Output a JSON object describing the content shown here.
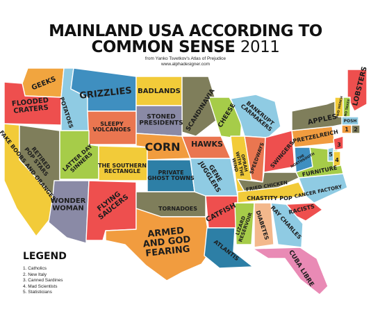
{
  "title_line1": "MAINLAND USA ACCORDING TO",
  "title_line2": "COMMON SENSE",
  "title_year": "2011",
  "credit_line1": "from Yanko Tsvetkov's Atlas of Prejudice",
  "credit_line2": "www.alphadesigner.com",
  "legend": {
    "title": "LEGEND",
    "items": [
      "1. Catholics",
      "2. New Italy",
      "3. Canned Sardines",
      "4. Mad Scientists",
      "5. Statisticians"
    ]
  },
  "regions": [
    {
      "id": "wa",
      "lines": [
        "GEEKS"
      ],
      "color": "#f1a53f"
    },
    {
      "id": "id",
      "lines": [
        "POTATOES"
      ],
      "color": "#8fcbe3"
    },
    {
      "id": "mt",
      "lines": [
        "GRIZZLIES"
      ],
      "color": "#3f8fc0"
    },
    {
      "id": "nd",
      "lines": [
        "BADLANDS"
      ],
      "color": "#f2cb39"
    },
    {
      "id": "mn",
      "lines": [
        "SCANDINAVIA"
      ],
      "color": "#7f7e5b"
    },
    {
      "id": "sd",
      "lines": [
        "STONED",
        "PRESIDENTS"
      ],
      "color": "#8a8aa6"
    },
    {
      "id": "wy",
      "lines": [
        "SLEEPY",
        "VOLCANOES"
      ],
      "color": "#ea7650"
    },
    {
      "id": "or",
      "lines": [
        "FLOODED",
        "CRATERS"
      ],
      "color": "#ee4f4e"
    },
    {
      "id": "ca",
      "lines": [
        "FAKE BOOBS AND ORANGES"
      ],
      "color": "#f2cb39"
    },
    {
      "id": "nv",
      "lines": [
        "RETIRED",
        "POP STARS"
      ],
      "color": "#7f7e5b"
    },
    {
      "id": "ut",
      "lines": [
        "LATTER DAY",
        "SINNERS"
      ],
      "color": "#a6cc49"
    },
    {
      "id": "co",
      "lines": [
        "THE SOUTHERN",
        "RECTANGLE"
      ],
      "color": "#f2cb39"
    },
    {
      "id": "ne",
      "lines": [
        "CORN"
      ],
      "color": "#f19c3f"
    },
    {
      "id": "ks",
      "lines": [
        "PRIVATE",
        "GHOST TOWNS"
      ],
      "color": "#2d7fa6"
    },
    {
      "id": "az",
      "lines": [
        "WONDER",
        "WOMAN"
      ],
      "color": "#8a8aa6"
    },
    {
      "id": "nm",
      "lines": [
        "FLYING",
        "SAUCERS"
      ],
      "color": "#ee4f4e"
    },
    {
      "id": "ok",
      "lines": [
        "TORNADOES"
      ],
      "color": "#7f7e5b"
    },
    {
      "id": "tx",
      "lines": [
        "ARMED",
        "AND GOD",
        "FEARING"
      ],
      "color": "#f19c3f"
    },
    {
      "id": "ia",
      "lines": [
        "HAWKS"
      ],
      "color": "#ea7650"
    },
    {
      "id": "mo",
      "lines": [
        "GENE",
        "JUGGLERS"
      ],
      "color": "#8fcbe3"
    },
    {
      "id": "wi",
      "lines": [
        "CHEESE"
      ],
      "color": "#a6cc49"
    },
    {
      "id": "il",
      "lines": [
        "OPRAH",
        "WITH THE",
        "WIND"
      ],
      "color": "#f2cb39"
    },
    {
      "id": "mi",
      "lines": [
        "BANKRUPT",
        "CARMAKERS"
      ],
      "color": "#8fcbe3"
    },
    {
      "id": "in",
      "lines": [
        "SPEEDWAYS"
      ],
      "color": "#ea7650"
    },
    {
      "id": "oh",
      "lines": [
        "SWINGERS"
      ],
      "color": "#ee4f4e"
    },
    {
      "id": "pa",
      "lines": [
        "PRETZELREICH"
      ],
      "color": "#f19c3f"
    },
    {
      "id": "ny",
      "lines": [
        "APPLES"
      ],
      "color": "#7f7e5b"
    },
    {
      "id": "me",
      "lines": [
        "LOBSTERS"
      ],
      "color": "#ee4f4e"
    },
    {
      "id": "vt",
      "lines": [
        "PAID WENCH"
      ],
      "color": "#f2cb39"
    },
    {
      "id": "nh",
      "lines": [
        "NO TAXES"
      ],
      "color": "#a6cc49"
    },
    {
      "id": "ma",
      "lines": [
        "POSH"
      ],
      "color": "#8fcbe3"
    },
    {
      "id": "wv",
      "lines": [
        "THE",
        "NORTHSOUTH"
      ],
      "color": "#3f8fc0"
    },
    {
      "id": "va",
      "lines": [
        "FURNITURE"
      ],
      "color": "#a6cc49"
    },
    {
      "id": "ky",
      "lines": [
        "FRIED CHICKEN"
      ],
      "color": "#7f7e5b"
    },
    {
      "id": "tn",
      "lines": [
        "CHASTITY POP"
      ],
      "color": "#f2cb39"
    },
    {
      "id": "nc",
      "lines": [
        "CANCER FACTORY"
      ],
      "color": "#8fcbe3"
    },
    {
      "id": "sc",
      "lines": [
        "RACISTS"
      ],
      "color": "#ee4f4e"
    },
    {
      "id": "ar",
      "lines": [
        "CATFISH"
      ],
      "color": "#ee4f4e"
    },
    {
      "id": "la",
      "lines": [
        "ATLANTIS"
      ],
      "color": "#2d7fa6"
    },
    {
      "id": "ms",
      "lines": [
        "LIZARD",
        "RESERVOIR"
      ],
      "color": "#a6cc49"
    },
    {
      "id": "al",
      "lines": [
        "DIABETES"
      ],
      "color": "#f3b88c"
    },
    {
      "id": "ga",
      "lines": [
        "RAY CHARLES"
      ],
      "color": "#8fcbe3"
    },
    {
      "id": "fl",
      "lines": [
        "CUBA LIBRE"
      ],
      "color": "#e98ab5"
    },
    {
      "id": "nj",
      "lines": [
        "3"
      ],
      "color": "#ee4f4e"
    },
    {
      "id": "de",
      "lines": [
        "5"
      ],
      "color": "#8fcbe3"
    },
    {
      "id": "md",
      "lines": [
        "4"
      ],
      "color": "#f2cb39"
    },
    {
      "id": "ri",
      "lines": [
        "2"
      ],
      "color": "#7f7e5b"
    },
    {
      "id": "ct",
      "lines": [
        "1"
      ],
      "color": "#f19c3f"
    }
  ]
}
